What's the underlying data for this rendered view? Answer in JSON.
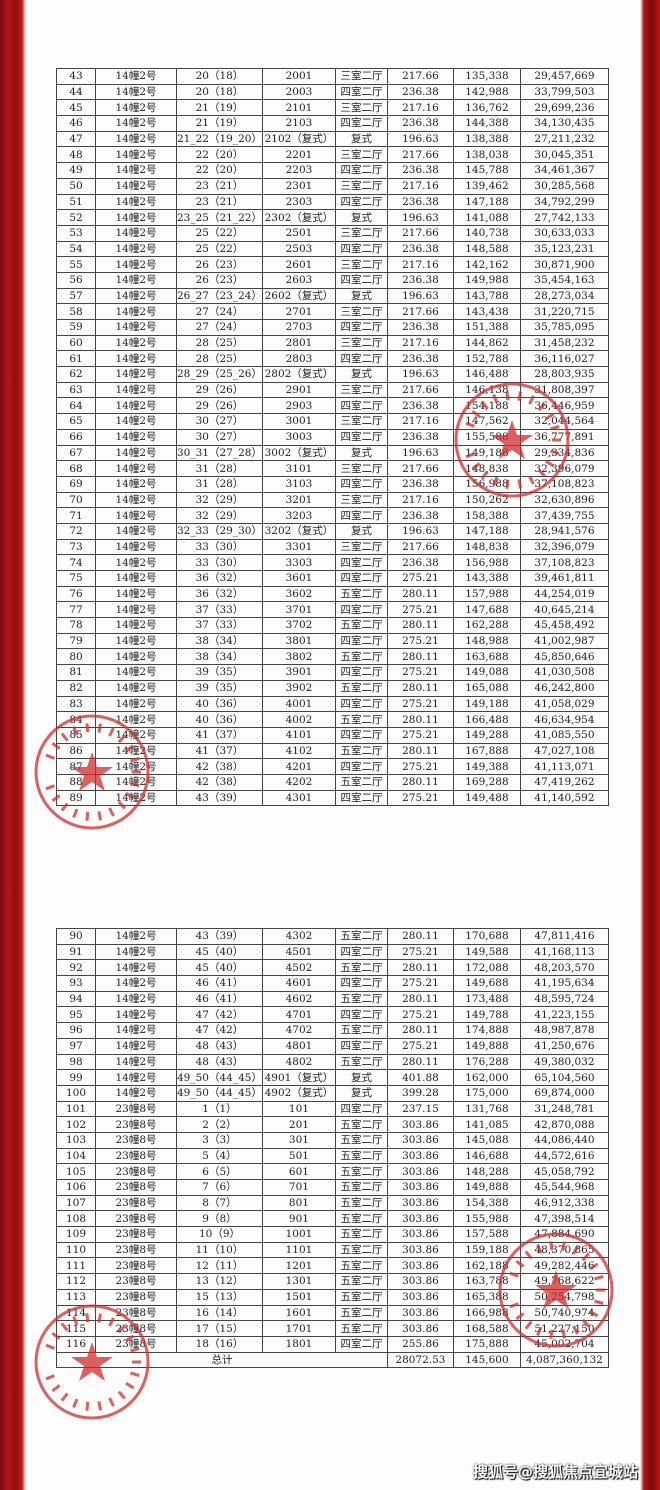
{
  "colors": {
    "stamp": "#d62a2a",
    "background": "#a51216"
  },
  "table_top": [
    [
      "43",
      "14幢2号",
      "20（18）",
      "2001",
      "三室二厅",
      "217.66",
      "135,338",
      "29,457,669"
    ],
    [
      "44",
      "14幢2号",
      "20（18）",
      "2003",
      "四室二厅",
      "236.38",
      "142,988",
      "33,799,503"
    ],
    [
      "45",
      "14幢2号",
      "21（19）",
      "2101",
      "三室二厅",
      "217.16",
      "136,762",
      "29,699,236"
    ],
    [
      "46",
      "14幢2号",
      "21（19）",
      "2103",
      "四室二厅",
      "236.38",
      "144,388",
      "34,130,435"
    ],
    [
      "47",
      "14幢2号",
      "21_22（19_20）",
      "2102（复式）",
      "复式",
      "196.63",
      "138,388",
      "27,211,232"
    ],
    [
      "48",
      "14幢2号",
      "22（20）",
      "2201",
      "三室二厅",
      "217.66",
      "138,038",
      "30,045,351"
    ],
    [
      "49",
      "14幢2号",
      "22（20）",
      "2203",
      "四室二厅",
      "236.38",
      "145,788",
      "34,461,367"
    ],
    [
      "50",
      "14幢2号",
      "23（21）",
      "2301",
      "三室二厅",
      "217.16",
      "139,462",
      "30,285,568"
    ],
    [
      "51",
      "14幢2号",
      "23（21）",
      "2303",
      "四室二厅",
      "236.38",
      "147,188",
      "34,792,299"
    ],
    [
      "52",
      "14幢2号",
      "23_25（21_22）",
      "2302（复式）",
      "复式",
      "196.63",
      "141,088",
      "27,742,133"
    ],
    [
      "53",
      "14幢2号",
      "25（22）",
      "2501",
      "三室二厅",
      "217.66",
      "140,738",
      "30,633,033"
    ],
    [
      "54",
      "14幢2号",
      "25（22）",
      "2503",
      "四室二厅",
      "236.38",
      "148,588",
      "35,123,231"
    ],
    [
      "55",
      "14幢2号",
      "26（23）",
      "2601",
      "三室二厅",
      "217.16",
      "142,162",
      "30,871,900"
    ],
    [
      "56",
      "14幢2号",
      "26（23）",
      "2603",
      "四室二厅",
      "236.38",
      "149,988",
      "35,454,163"
    ],
    [
      "57",
      "14幢2号",
      "26_27（23_24）",
      "2602（复式）",
      "复式",
      "196.63",
      "143,788",
      "28,273,034"
    ],
    [
      "58",
      "14幢2号",
      "27（24）",
      "2701",
      "三室二厅",
      "217.66",
      "143,438",
      "31,220,715"
    ],
    [
      "59",
      "14幢2号",
      "27（24）",
      "2703",
      "四室二厅",
      "236.38",
      "151,388",
      "35,785,095"
    ],
    [
      "60",
      "14幢2号",
      "28（25）",
      "2801",
      "三室二厅",
      "217.16",
      "144,862",
      "31,458,232"
    ],
    [
      "61",
      "14幢2号",
      "28（25）",
      "2803",
      "四室二厅",
      "236.38",
      "152,788",
      "36,116,027"
    ],
    [
      "62",
      "14幢2号",
      "28_29（25_26）",
      "2802（复式）",
      "复式",
      "196.63",
      "146,488",
      "28,803,935"
    ],
    [
      "63",
      "14幢2号",
      "29（26）",
      "2901",
      "三室二厅",
      "217.66",
      "146,138",
      "31,808,397"
    ],
    [
      "64",
      "14幢2号",
      "29（26）",
      "2903",
      "四室二厅",
      "236.38",
      "154,188",
      "36,446,959"
    ],
    [
      "65",
      "14幢2号",
      "30（27）",
      "3001",
      "三室二厅",
      "217.16",
      "147,562",
      "32,044,564"
    ],
    [
      "66",
      "14幢2号",
      "30（27）",
      "3003",
      "四室二厅",
      "236.38",
      "155,588",
      "36,777,891"
    ],
    [
      "67",
      "14幢2号",
      "30_31（27_28）",
      "3002（复式）",
      "复式",
      "196.63",
      "149,188",
      "29,334,836"
    ],
    [
      "68",
      "14幢2号",
      "31（28）",
      "3101",
      "三室二厅",
      "217.66",
      "148,838",
      "32,396,079"
    ],
    [
      "69",
      "14幢2号",
      "31（28）",
      "3103",
      "四室二厅",
      "236.38",
      "156,988",
      "37,108,823"
    ],
    [
      "70",
      "14幢2号",
      "32（29）",
      "3201",
      "三室二厅",
      "217.16",
      "150,262",
      "32,630,896"
    ],
    [
      "71",
      "14幢2号",
      "32（29）",
      "3203",
      "四室二厅",
      "236.38",
      "158,388",
      "37,439,755"
    ],
    [
      "72",
      "14幢2号",
      "32_33（29_30）",
      "3202（复式）",
      "复式",
      "196.63",
      "147,188",
      "28,941,576"
    ],
    [
      "73",
      "14幢2号",
      "33（30）",
      "3301",
      "三室二厅",
      "217.66",
      "148,838",
      "32,396,079"
    ],
    [
      "74",
      "14幢2号",
      "33（30）",
      "3303",
      "四室二厅",
      "236.38",
      "156,988",
      "37,108,823"
    ],
    [
      "75",
      "14幢2号",
      "36（32）",
      "3601",
      "四室二厅",
      "275.21",
      "143,388",
      "39,461,811"
    ],
    [
      "76",
      "14幢2号",
      "36（32）",
      "3602",
      "五室二厅",
      "280.11",
      "157,988",
      "44,254,019"
    ],
    [
      "77",
      "14幢2号",
      "37（33）",
      "3701",
      "四室二厅",
      "275.21",
      "147,688",
      "40,645,214"
    ],
    [
      "78",
      "14幢2号",
      "37（33）",
      "3702",
      "五室二厅",
      "280.11",
      "162,288",
      "45,458,492"
    ],
    [
      "79",
      "14幢2号",
      "38（34）",
      "3801",
      "四室二厅",
      "275.21",
      "148,988",
      "41,002,987"
    ],
    [
      "80",
      "14幢2号",
      "38（34）",
      "3802",
      "五室二厅",
      "280.11",
      "163,688",
      "45,850,646"
    ],
    [
      "81",
      "14幢2号",
      "39（35）",
      "3901",
      "四室二厅",
      "275.21",
      "149,088",
      "41,030,508"
    ],
    [
      "82",
      "14幢2号",
      "39（35）",
      "3902",
      "五室二厅",
      "280.11",
      "165,088",
      "46,242,800"
    ],
    [
      "83",
      "14幢2号",
      "40（36）",
      "4001",
      "四室二厅",
      "275.21",
      "149,188",
      "41,058,029"
    ],
    [
      "84",
      "14幢2号",
      "40（36）",
      "4002",
      "五室二厅",
      "280.11",
      "166,488",
      "46,634,954"
    ],
    [
      "85",
      "14幢2号",
      "41（37）",
      "4101",
      "四室二厅",
      "275.21",
      "149,288",
      "41,085,550"
    ],
    [
      "86",
      "14幢2号",
      "41（37）",
      "4102",
      "五室二厅",
      "280.11",
      "167,888",
      "47,027,108"
    ],
    [
      "87",
      "14幢2号",
      "42（38）",
      "4201",
      "四室二厅",
      "275.21",
      "149,388",
      "41,113,071"
    ],
    [
      "88",
      "14幢2号",
      "42（38）",
      "4202",
      "五室二厅",
      "280.11",
      "169,288",
      "47,419,262"
    ],
    [
      "89",
      "14幢2号",
      "43（39）",
      "4301",
      "四室二厅",
      "275.21",
      "149,488",
      "41,140,592"
    ]
  ],
  "table_bottom": [
    [
      "90",
      "14幢2号",
      "43（39）",
      "4302",
      "五室二厅",
      "280.11",
      "170,688",
      "47,811,416"
    ],
    [
      "91",
      "14幢2号",
      "45（40）",
      "4501",
      "四室二厅",
      "275.21",
      "149,588",
      "41,168,113"
    ],
    [
      "92",
      "14幢2号",
      "45（40）",
      "4502",
      "五室二厅",
      "280.11",
      "172,088",
      "48,203,570"
    ],
    [
      "93",
      "14幢2号",
      "46（41）",
      "4601",
      "四室二厅",
      "275.21",
      "149,688",
      "41,195,634"
    ],
    [
      "94",
      "14幢2号",
      "46（41）",
      "4602",
      "五室二厅",
      "280.11",
      "173,488",
      "48,595,724"
    ],
    [
      "95",
      "14幢2号",
      "47（42）",
      "4701",
      "四室二厅",
      "275.21",
      "149,788",
      "41,223,155"
    ],
    [
      "96",
      "14幢2号",
      "47（42）",
      "4702",
      "五室二厅",
      "280.11",
      "174,888",
      "48,987,878"
    ],
    [
      "97",
      "14幢2号",
      "48（43）",
      "4801",
      "四室二厅",
      "275.21",
      "149,888",
      "41,250,676"
    ],
    [
      "98",
      "14幢2号",
      "48（43）",
      "4802",
      "五室二厅",
      "280.11",
      "176,288",
      "49,380,032"
    ],
    [
      "99",
      "14幢2号",
      "49_50（44_45）",
      "4901（复式）",
      "复式",
      "401.88",
      "162,000",
      "65,104,560"
    ],
    [
      "100",
      "14幢2号",
      "49_50（44_45）",
      "4902（复式）",
      "复式",
      "399.28",
      "175,000",
      "69,874,000"
    ],
    [
      "101",
      "23幢8号",
      "1（1）",
      "101",
      "四室二厅",
      "237.15",
      "131,768",
      "31,248,781"
    ],
    [
      "102",
      "23幢8号",
      "2（2）",
      "201",
      "五室二厅",
      "303.86",
      "141,085",
      "42,870,088"
    ],
    [
      "103",
      "23幢8号",
      "3（3）",
      "301",
      "五室二厅",
      "303.86",
      "145,088",
      "44,086,440"
    ],
    [
      "104",
      "23幢8号",
      "5（4）",
      "501",
      "五室二厅",
      "303.86",
      "146,688",
      "44,572,616"
    ],
    [
      "105",
      "23幢8号",
      "6（5）",
      "601",
      "五室二厅",
      "303.86",
      "148,288",
      "45,058,792"
    ],
    [
      "106",
      "23幢8号",
      "7（6）",
      "701",
      "五室二厅",
      "303.86",
      "149,888",
      "45,544,968"
    ],
    [
      "107",
      "23幢8号",
      "8（7）",
      "801",
      "五室二厅",
      "303.86",
      "154,388",
      "46,912,338"
    ],
    [
      "108",
      "23幢8号",
      "9（8）",
      "901",
      "五室二厅",
      "303.86",
      "155,988",
      "47,398,514"
    ],
    [
      "109",
      "23幢8号",
      "10（9）",
      "1001",
      "五室二厅",
      "303.86",
      "157,588",
      "47,884,690"
    ],
    [
      "110",
      "23幢8号",
      "11（10）",
      "1101",
      "五室二厅",
      "303.86",
      "159,188",
      "48,370,865"
    ],
    [
      "111",
      "23幢8号",
      "12（11）",
      "1201",
      "五室二厅",
      "303.86",
      "162,188",
      "49,282,446"
    ],
    [
      "112",
      "23幢8号",
      "13（12）",
      "1301",
      "五室二厅",
      "303.86",
      "163,788",
      "49,768,622"
    ],
    [
      "113",
      "23幢8号",
      "15（13）",
      "1501",
      "五室二厅",
      "303.86",
      "165,388",
      "50,254,798"
    ],
    [
      "114",
      "23幢8号",
      "16（14）",
      "1601",
      "五室二厅",
      "303.86",
      "166,988",
      "50,740,974"
    ],
    [
      "115",
      "23幢8号",
      "17（15）",
      "1701",
      "五室二厅",
      "303.86",
      "168,588",
      "51,227,150"
    ],
    [
      "116",
      "23幢8号",
      "18（16）",
      "1801",
      "四室二厅",
      "255.86",
      "175,888",
      "45,002,704"
    ]
  ],
  "total": {
    "label": "总计",
    "area": "28072.53",
    "avg_price": "145,600",
    "sum": "4,087,360,132"
  },
  "stamp_text": "上海建工九龙房地产有限公司",
  "watermark": "搜狐号@搜狐焦点宜城站"
}
